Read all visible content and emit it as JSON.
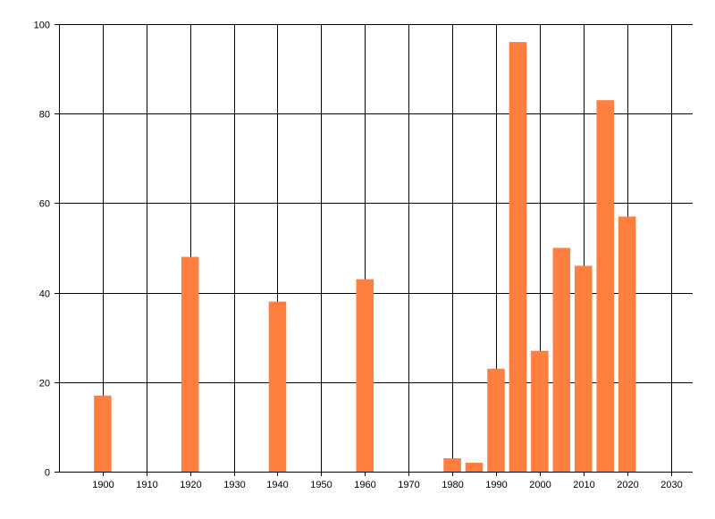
{
  "chart_data": {
    "type": "bar",
    "title": "",
    "xlabel": "",
    "ylabel": "",
    "x": [
      1900,
      1920,
      1940,
      1960,
      1980,
      1985,
      1990,
      1995,
      2000,
      2005,
      2010,
      2015,
      2020
    ],
    "values": [
      17,
      48,
      38,
      43,
      3,
      2,
      23,
      96,
      27,
      50,
      46,
      83,
      57
    ],
    "xlim": [
      1890,
      2035
    ],
    "ylim": [
      0,
      100
    ],
    "x_ticks": [
      1900,
      1910,
      1920,
      1930,
      1940,
      1950,
      1960,
      1970,
      1980,
      1990,
      2000,
      2010,
      2020,
      2030
    ],
    "y_ticks": [
      0,
      20,
      40,
      60,
      80,
      100
    ],
    "grid": true,
    "legend": "none",
    "bar_color": "#ff7f3f",
    "grid_color": "#000000"
  }
}
